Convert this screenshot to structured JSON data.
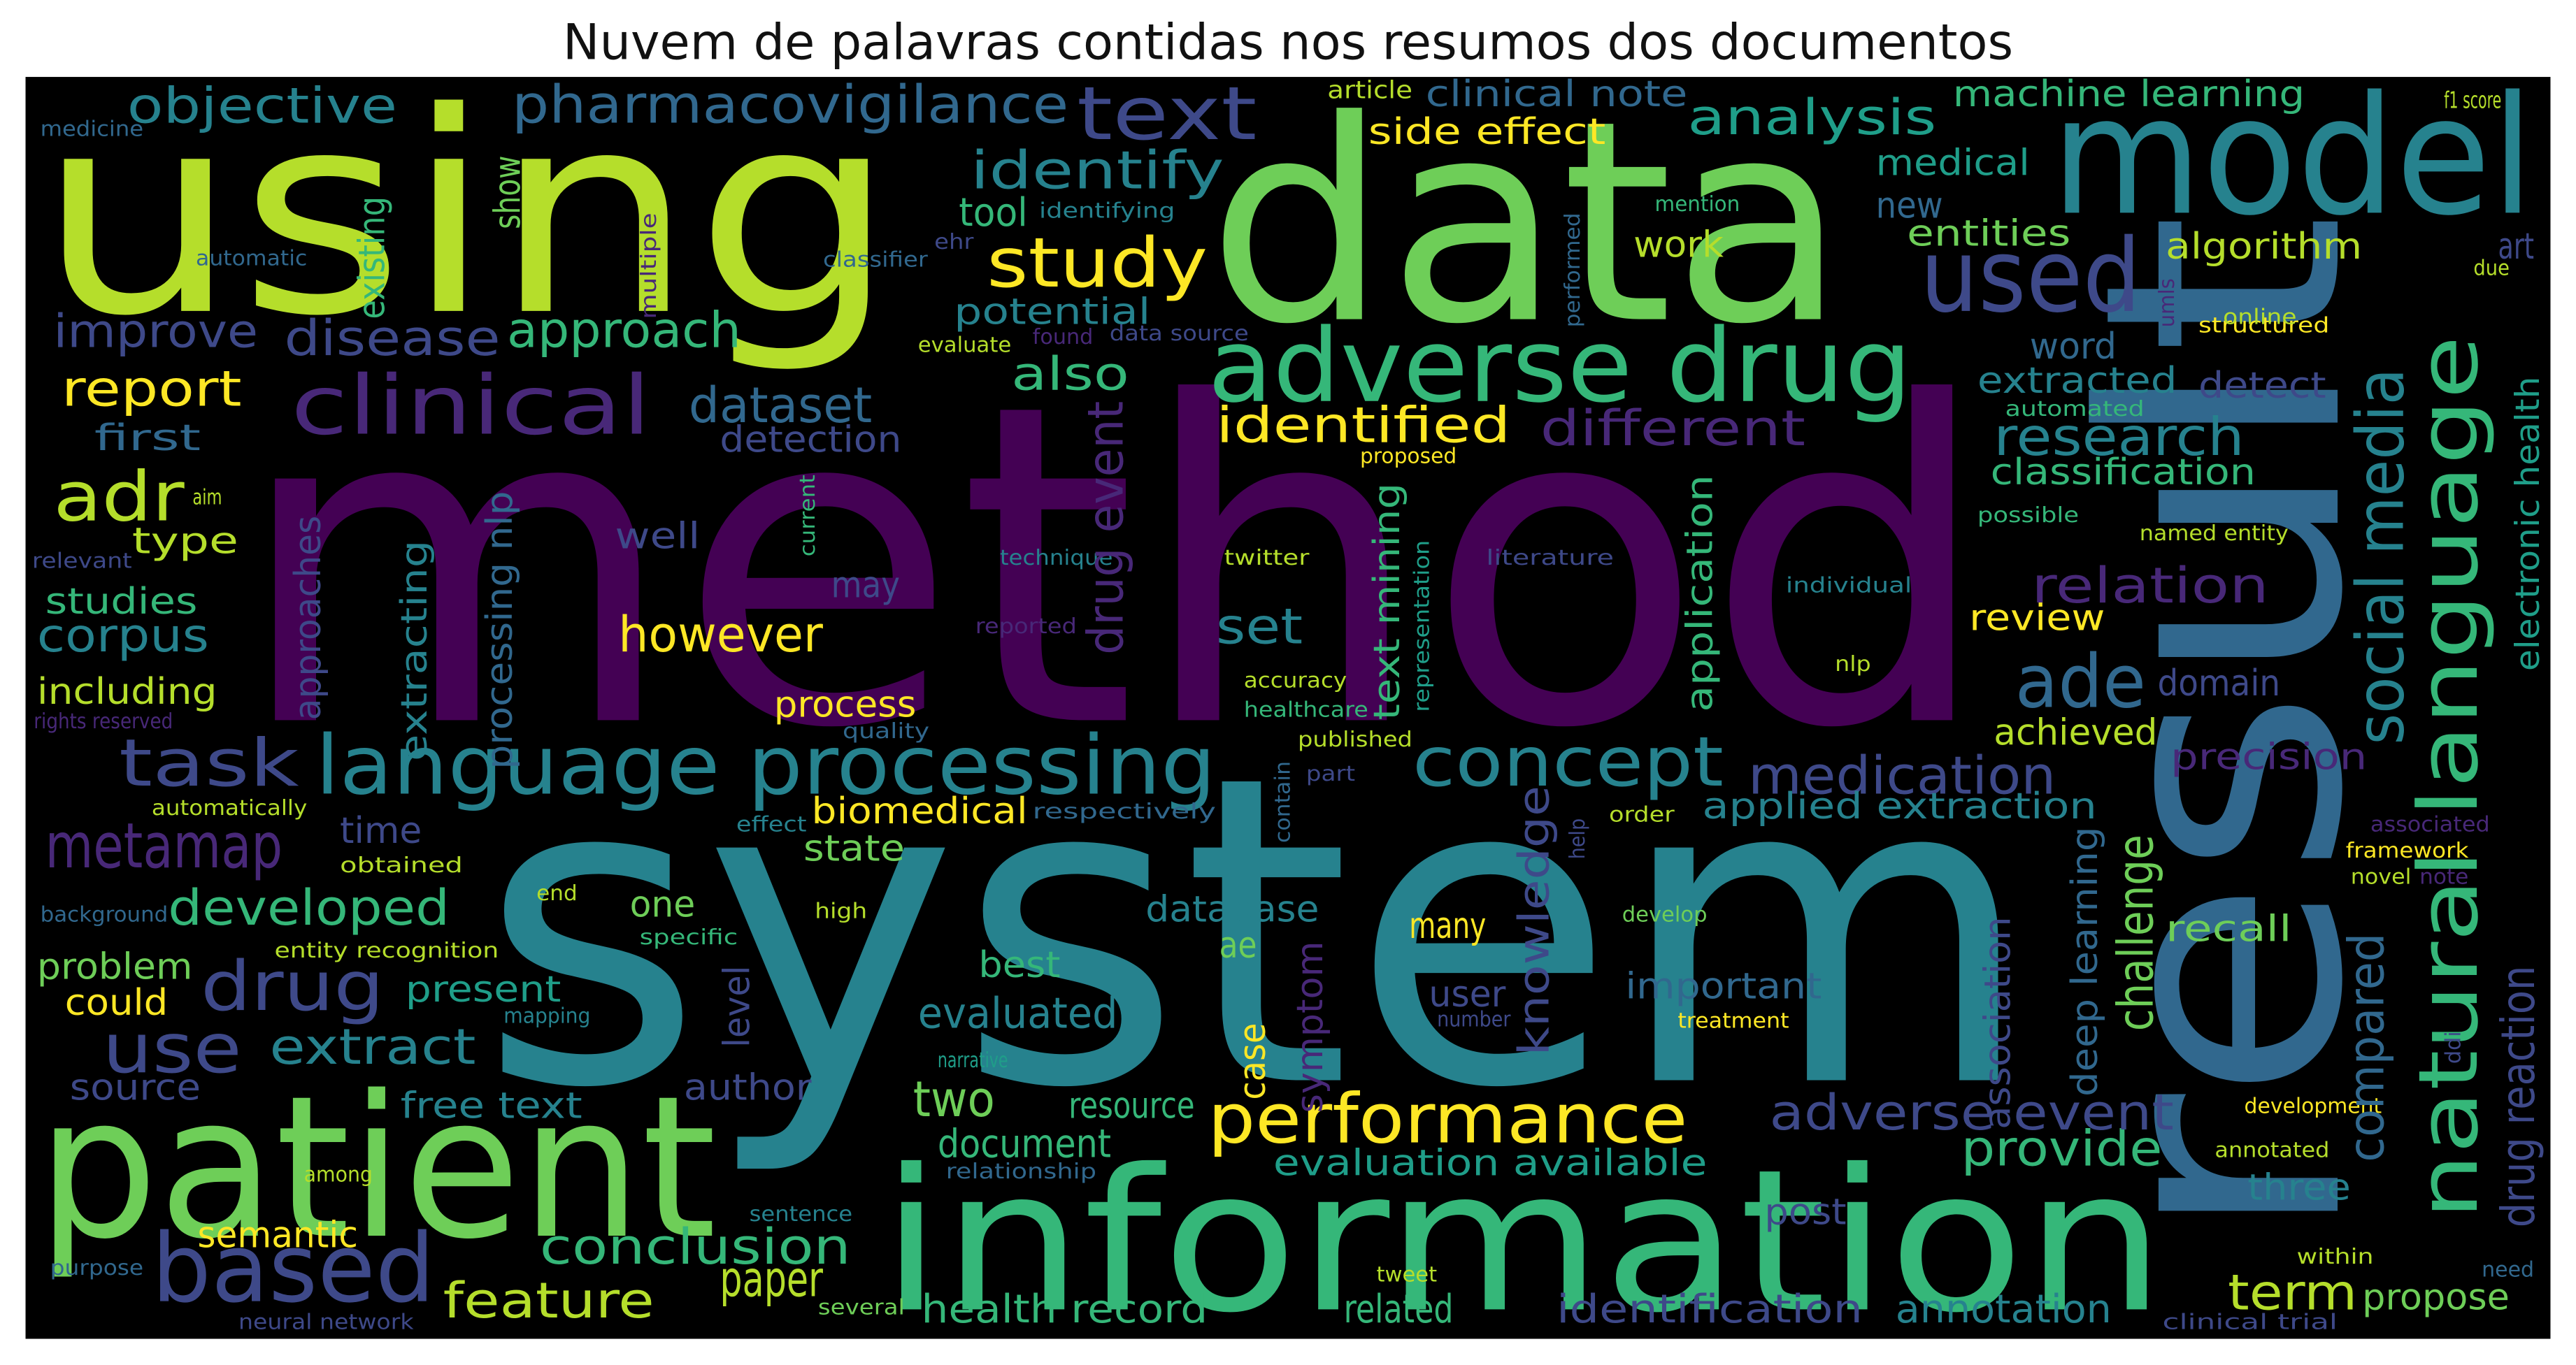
{
  "chart_data": {
    "type": "wordcloud",
    "title": "Nuvem de palavras contidas nos resumos dos documentos",
    "background": "#000000",
    "palette": [
      "#440154",
      "#482878",
      "#3e4989",
      "#31688e",
      "#26828e",
      "#1f9e89",
      "#35b779",
      "#6ece58",
      "#b5de2b",
      "#fde725"
    ],
    "words": [
      "using",
      "data",
      "model",
      "method",
      "system",
      "result",
      "information",
      "patient",
      "adverse drug",
      "language processing",
      "natural language",
      "social media",
      "electronic health",
      "drug reaction",
      "clinical",
      "text",
      "pharmacovigilance",
      "objective",
      "identify",
      "study",
      "used",
      "analysis",
      "machine learning",
      "clinical note",
      "side effect",
      "article",
      "f1 score",
      "medicine",
      "medical",
      "new",
      "entities",
      "algorithm",
      "work",
      "mention",
      "tool",
      "identifying",
      "potential",
      "approach",
      "disease",
      "improve",
      "report",
      "first",
      "adr",
      "type",
      "aim",
      "relevant",
      "studies",
      "corpus",
      "including",
      "rights reserved",
      "task",
      "metamap",
      "automatically",
      "time",
      "obtained",
      "developed",
      "background",
      "end",
      "drug",
      "entity recognition",
      "problem",
      "could",
      "present",
      "mapping",
      "use",
      "extract",
      "source",
      "free text",
      "author",
      "based",
      "feature",
      "paper",
      "conclusion",
      "semantic",
      "among",
      "sentence",
      "purpose",
      "neural network",
      "several",
      "health record",
      "related",
      "tweet",
      "identification",
      "annotation",
      "clinical trial",
      "need",
      "propose",
      "term",
      "within",
      "post",
      "three",
      "annotated",
      "development",
      "provide",
      "adverse event",
      "evaluation available",
      "performance",
      "document",
      "relationship",
      "resource",
      "two",
      "narrative",
      "evaluated",
      "best",
      "ae",
      "database",
      "one",
      "specific",
      "high",
      "state",
      "biomedical",
      "effect",
      "respectively",
      "process",
      "quality",
      "however",
      "well",
      "may",
      "technique",
      "reported",
      "set",
      "twitter",
      "accuracy",
      "healthcare",
      "published",
      "identified",
      "different",
      "proposed",
      "also",
      "dataset",
      "detection",
      "concept",
      "medication",
      "applied extraction",
      "ade",
      "relation",
      "review",
      "domain",
      "achieved",
      "precision",
      "research",
      "classification",
      "extracted",
      "detect",
      "word",
      "automated",
      "structured",
      "online",
      "possible",
      "named entity",
      "individual",
      "nlp",
      "literature",
      "art",
      "due",
      "challenge",
      "compared",
      "recall",
      "deep learning",
      "association",
      "framework",
      "associated",
      "novel",
      "note",
      "ddi",
      "important",
      "treatment",
      "develop",
      "many",
      "user",
      "number",
      "knowledge",
      "level",
      "case",
      "symptom",
      "order",
      "help",
      "contain",
      "part",
      "approaches",
      "extracting",
      "processing nlp",
      "drug event",
      "text mining",
      "representation",
      "application",
      "show",
      "existing",
      "automatic",
      "ehr",
      "multiple",
      "classifier",
      "evaluate",
      "found",
      "data source",
      "performed",
      "umls",
      "current"
    ]
  }
}
